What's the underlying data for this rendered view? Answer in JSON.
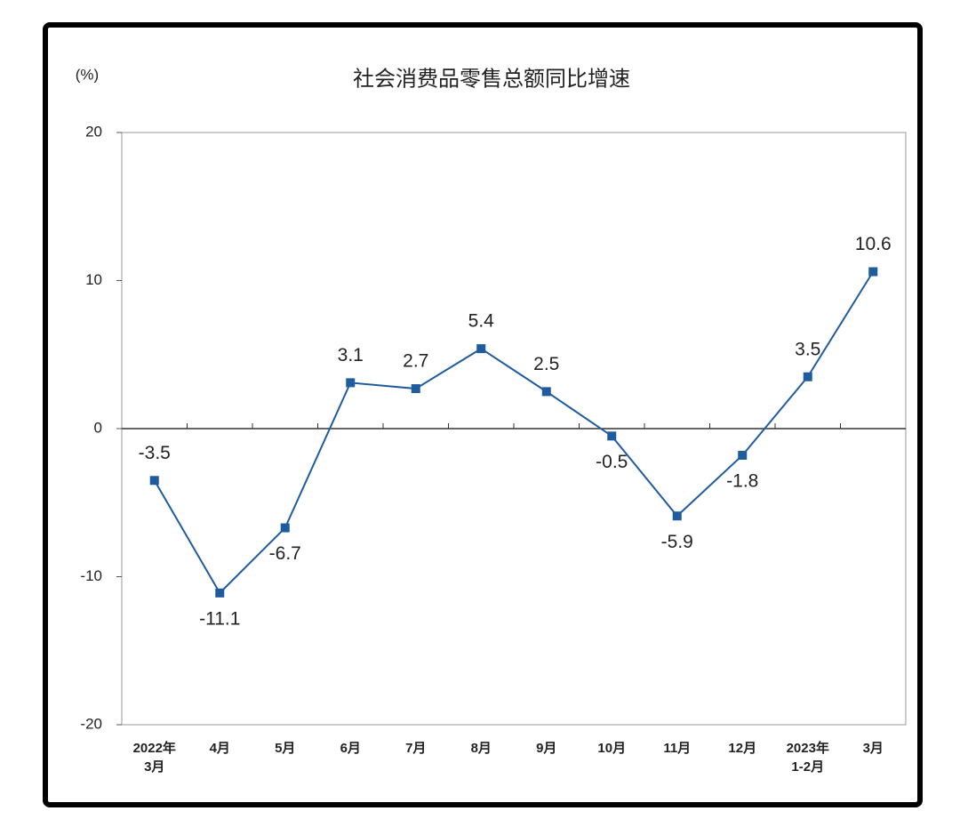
{
  "chart_data": {
    "type": "line",
    "title": "社会消费品零售总额同比增速",
    "y_unit_label": "(%)",
    "categories": [
      "2022年\n3月",
      "4月",
      "5月",
      "6月",
      "7月",
      "8月",
      "9月",
      "10月",
      "11月",
      "12月",
      "2023年\n1-2月",
      "3月"
    ],
    "series": [
      {
        "name": "社会消费品零售总额同比增速",
        "color": "#1f5c9e",
        "values": [
          -3.5,
          -11.1,
          -6.7,
          3.1,
          2.7,
          5.4,
          2.5,
          -0.5,
          -5.9,
          -1.8,
          3.5,
          10.6
        ]
      }
    ],
    "ylim": [
      -20,
      20
    ],
    "yticks": [
      -20,
      -10,
      0,
      10,
      20
    ],
    "grid": false,
    "legend": false
  }
}
